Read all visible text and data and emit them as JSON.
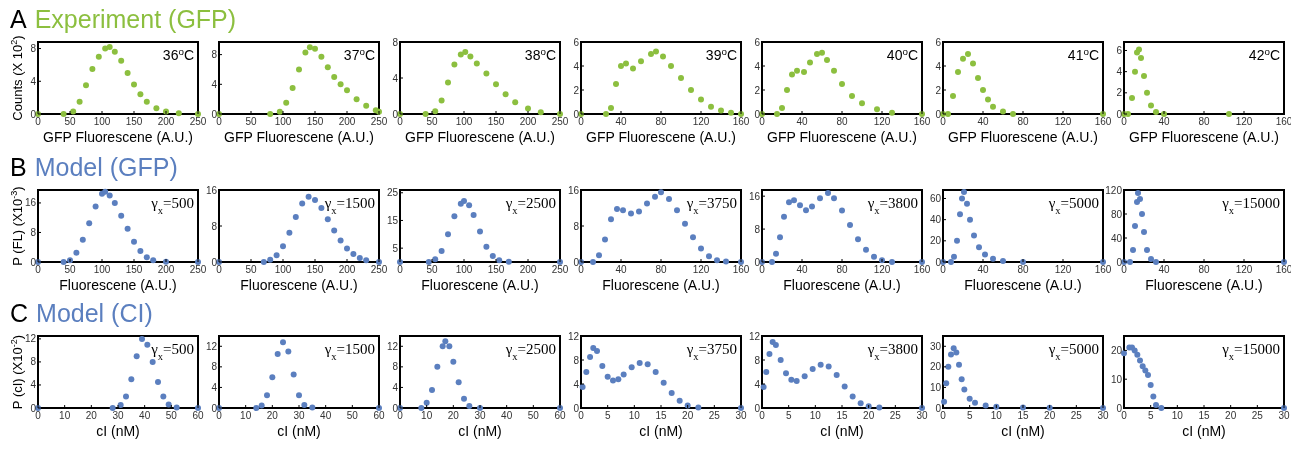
{
  "chart_data": [
    {
      "type": "scatter",
      "title": "A Experiment (GFP)",
      "ylabel": "Counts (X 10$^{2}$)",
      "xlabel": "GFP Fluorescene (A.U.)",
      "annotations": [
        "36$^{o}$C"
      ],
      "color": "#8cbf3f",
      "marker": "circle",
      "xlim": [
        0,
        250
      ],
      "xticks": [
        0,
        50,
        100,
        150,
        200,
        250
      ],
      "ylim": [
        0,
        8.8
      ],
      "yticks": [
        0,
        4,
        8
      ],
      "x": [
        0,
        40,
        55,
        65,
        75,
        85,
        95,
        105,
        112,
        120,
        130,
        140,
        150,
        160,
        170,
        185,
        200,
        220,
        250
      ],
      "values": [
        0,
        0,
        0.3,
        1.5,
        3.5,
        5.5,
        7,
        8,
        8.2,
        7.6,
        6.5,
        5,
        3.6,
        2.4,
        1.5,
        0.7,
        0.3,
        0.1,
        0
      ]
    },
    {
      "type": "scatter",
      "xlabel": "GFP Fluorescene (A.U.)",
      "annotations": [
        "37$^{o}$C"
      ],
      "color": "#8cbf3f",
      "marker": "circle",
      "xlim": [
        0,
        250
      ],
      "xticks": [
        0,
        50,
        100,
        150,
        200,
        250
      ],
      "ylim": [
        0,
        9.7
      ],
      "yticks": [
        0,
        4,
        8
      ],
      "x": [
        0,
        80,
        95,
        105,
        115,
        125,
        135,
        142,
        150,
        160,
        170,
        180,
        190,
        200,
        215,
        230,
        245,
        250
      ],
      "values": [
        0,
        0,
        0.3,
        1.5,
        3.5,
        6,
        8.3,
        9,
        8.8,
        7.7,
        6.3,
        5,
        4,
        3.2,
        2,
        1.1,
        0.5,
        0.3
      ]
    },
    {
      "type": "scatter",
      "xlabel": "GFP Fluorescene (A.U.)",
      "annotations": [
        "38$^{o}$C"
      ],
      "color": "#8cbf3f",
      "marker": "circle",
      "xlim": [
        0,
        250
      ],
      "xticks": [
        0,
        50,
        100,
        150,
        200,
        250
      ],
      "ylim": [
        0,
        8
      ],
      "yticks": [
        0,
        4,
        8
      ],
      "x": [
        0,
        40,
        55,
        65,
        75,
        85,
        95,
        102,
        110,
        120,
        135,
        150,
        165,
        180,
        200,
        220,
        250
      ],
      "values": [
        0,
        0,
        0.3,
        1.5,
        3.5,
        5.5,
        6.6,
        6.9,
        6.4,
        5.6,
        4.5,
        3.3,
        2.2,
        1.3,
        0.6,
        0.2,
        0
      ]
    },
    {
      "type": "scatter",
      "xlabel": "GFP Fluorescene (A.U.)",
      "annotations": [
        "39$^{o}$C"
      ],
      "color": "#8cbf3f",
      "marker": "circle",
      "xlim": [
        0,
        160
      ],
      "xticks": [
        0,
        40,
        80,
        120,
        160
      ],
      "ylim": [
        0,
        6
      ],
      "yticks": [
        0,
        2,
        4,
        6
      ],
      "x": [
        0,
        25,
        30,
        35,
        40,
        45,
        52,
        60,
        70,
        75,
        82,
        90,
        100,
        110,
        120,
        130,
        140,
        150,
        160
      ],
      "values": [
        0,
        0,
        0.5,
        2.5,
        4,
        4.2,
        3.8,
        4.4,
        5,
        5.2,
        4.8,
        4,
        3,
        2,
        1.2,
        0.6,
        0.3,
        0.1,
        0
      ]
    },
    {
      "type": "scatter",
      "xlabel": "GFP Fluorescene (A.U.)",
      "annotations": [
        "40$^{o}$C"
      ],
      "color": "#8cbf3f",
      "marker": "circle",
      "xlim": [
        0,
        160
      ],
      "xticks": [
        0,
        40,
        80,
        120,
        160
      ],
      "ylim": [
        0,
        6
      ],
      "yticks": [
        0,
        2,
        4,
        6
      ],
      "x": [
        0,
        15,
        20,
        25,
        30,
        35,
        42,
        48,
        55,
        60,
        65,
        72,
        80,
        90,
        100,
        115,
        130,
        160
      ],
      "values": [
        0,
        0,
        0.5,
        2,
        3.3,
        3.6,
        3.5,
        4.3,
        5,
        5.1,
        4.5,
        3.6,
        2.5,
        1.5,
        0.9,
        0.4,
        0.1,
        0
      ]
    },
    {
      "type": "scatter",
      "xlabel": "GFP Fluorescene (A.U.)",
      "annotations": [
        "41$^{o}$C"
      ],
      "color": "#8cbf3f",
      "marker": "circle",
      "xlim": [
        0,
        160
      ],
      "xticks": [
        0,
        40,
        80,
        120,
        160
      ],
      "ylim": [
        0,
        6
      ],
      "yticks": [
        0,
        2,
        4,
        6
      ],
      "x": [
        0,
        5,
        10,
        15,
        20,
        25,
        30,
        35,
        40,
        45,
        50,
        60,
        70,
        160
      ],
      "values": [
        0,
        0,
        1.5,
        3.5,
        4.6,
        5,
        4.2,
        3,
        2,
        1.2,
        0.6,
        0.2,
        0,
        0
      ]
    },
    {
      "type": "scatter",
      "xlabel": "GFP Fluorescene (A.U.)",
      "annotations": [
        "42$^{o}$C"
      ],
      "color": "#8cbf3f",
      "marker": "circle",
      "xlim": [
        0,
        160
      ],
      "xticks": [
        0,
        40,
        80,
        120,
        160
      ],
      "ylim": [
        0,
        6.8
      ],
      "yticks": [
        0,
        2,
        4,
        6
      ],
      "x": [
        0,
        4,
        8,
        11,
        13,
        15,
        17,
        20,
        23,
        27,
        32,
        40,
        105
      ],
      "values": [
        0,
        0,
        1.5,
        4,
        5.8,
        6.1,
        5.3,
        3.6,
        2,
        0.8,
        0.2,
        0,
        0
      ]
    },
    {
      "type": "scatter",
      "title": "B Model (GFP)",
      "ylabel": "P (FL)  (X10$^{-3}$)",
      "xlabel": "Fluorescene (A.U.)",
      "annotations": [
        "γ$_{x}$=500"
      ],
      "color": "#5b7fbf",
      "marker": "circle",
      "xlim": [
        0,
        250
      ],
      "xticks": [
        0,
        50,
        100,
        150,
        200,
        250
      ],
      "ylim": [
        0,
        19.5
      ],
      "yticks": [
        0,
        8,
        16
      ],
      "x": [
        0,
        40,
        50,
        60,
        70,
        80,
        90,
        100,
        105,
        112,
        120,
        130,
        140,
        150,
        160,
        170,
        180,
        200,
        250
      ],
      "values": [
        0,
        0,
        0.5,
        2.5,
        6,
        10.5,
        15,
        18.5,
        19,
        18,
        16,
        12.5,
        9,
        5.5,
        3,
        1.3,
        0.5,
        0.1,
        0
      ]
    },
    {
      "type": "scatter",
      "xlabel": "Fluorescene (A.U.)",
      "annotations": [
        "γ$_{x}$=1500"
      ],
      "color": "#5b7fbf",
      "marker": "circle",
      "xlim": [
        0,
        250
      ],
      "xticks": [
        0,
        50,
        100,
        150,
        200,
        250
      ],
      "ylim": [
        0,
        16
      ],
      "yticks": [
        0,
        8,
        16
      ],
      "x": [
        0,
        70,
        80,
        90,
        100,
        110,
        120,
        130,
        140,
        150,
        160,
        170,
        180,
        190,
        200,
        210,
        220,
        230,
        250
      ],
      "values": [
        0,
        0,
        0.5,
        1.5,
        3.5,
        6.5,
        10,
        13,
        14.5,
        13.8,
        12,
        9.5,
        7,
        4.8,
        3,
        1.8,
        0.9,
        0.4,
        0
      ]
    },
    {
      "type": "scatter",
      "xlabel": "Fluorescene (A.U.)",
      "annotations": [
        "γ$_{x}$=2500"
      ],
      "color": "#5b7fbf",
      "marker": "circle",
      "xlim": [
        0,
        250
      ],
      "xticks": [
        0,
        50,
        100,
        150,
        200,
        250
      ],
      "ylim": [
        0,
        26
      ],
      "yticks": [
        5,
        15,
        25
      ],
      "x": [
        0,
        45,
        55,
        65,
        75,
        85,
        95,
        100,
        108,
        115,
        125,
        135,
        145,
        155,
        170,
        250
      ],
      "values": [
        0,
        0,
        1,
        4,
        10,
        16.5,
        21,
        22,
        20.5,
        17,
        11,
        5.5,
        2.2,
        0.6,
        0.1,
        0
      ]
    },
    {
      "type": "scatter",
      "xlabel": "Fluorescene (A.U.)",
      "annotations": [
        "γ$_{x}$=3750"
      ],
      "color": "#5b7fbf",
      "marker": "circle",
      "xlim": [
        0,
        160
      ],
      "xticks": [
        0,
        40,
        80,
        120,
        160
      ],
      "ylim": [
        0,
        16
      ],
      "yticks": [
        0,
        8,
        16
      ],
      "x": [
        0,
        12,
        18,
        24,
        30,
        36,
        42,
        50,
        58,
        66,
        74,
        80,
        88,
        96,
        104,
        112,
        120,
        128,
        136,
        145,
        160
      ],
      "values": [
        0,
        0,
        1.5,
        5,
        9.5,
        11.8,
        11.5,
        10.8,
        11.2,
        13,
        14.5,
        15.5,
        14,
        11.5,
        8.5,
        5.5,
        3,
        1.3,
        0.4,
        0.1,
        0
      ]
    },
    {
      "type": "scatter",
      "xlabel": "Fluorescene (A.U.)",
      "annotations": [
        "γ$_{x}$=3800"
      ],
      "color": "#5b7fbf",
      "marker": "circle",
      "xlim": [
        0,
        160
      ],
      "xticks": [
        0,
        40,
        80,
        120,
        160
      ],
      "ylim": [
        0,
        17.5
      ],
      "yticks": [
        0,
        8,
        16
      ],
      "x": [
        0,
        10,
        14,
        18,
        22,
        27,
        32,
        38,
        44,
        50,
        58,
        66,
        72,
        80,
        88,
        96,
        104,
        112,
        120,
        130,
        160
      ],
      "values": [
        0,
        0,
        2,
        6,
        11,
        14.5,
        15,
        13.8,
        12.6,
        13.5,
        15.5,
        16.8,
        15.5,
        12.5,
        9,
        5.5,
        3,
        1.3,
        0.4,
        0,
        0
      ]
    },
    {
      "type": "scatter",
      "xlabel": "Fluorescene (A.U.)",
      "annotations": [
        "γ$_{x}$=5000"
      ],
      "color": "#5b7fbf",
      "marker": "circle",
      "xlim": [
        0,
        160
      ],
      "xticks": [
        0,
        40,
        80,
        120,
        160
      ],
      "ylim": [
        0,
        68
      ],
      "yticks": [
        0,
        20,
        40,
        60
      ],
      "x": [
        0,
        8,
        11,
        14,
        17,
        19,
        21,
        24,
        27,
        31,
        36,
        42,
        50,
        60,
        80,
        160
      ],
      "values": [
        0,
        0,
        5,
        20,
        45,
        60,
        66,
        55,
        40,
        25,
        14,
        7,
        3,
        1,
        0,
        0
      ]
    },
    {
      "type": "scatter",
      "xlabel": "Fluorescene (A.U.)",
      "annotations": [
        "γ$_{x}$=15000"
      ],
      "color": "#5b7fbf",
      "marker": "circle",
      "xlim": [
        0,
        160
      ],
      "xticks": [
        0,
        40,
        80,
        120,
        160
      ],
      "ylim": [
        0,
        120
      ],
      "yticks": [
        0,
        40,
        80,
        120
      ],
      "x": [
        0,
        6,
        9,
        11,
        13,
        14,
        16,
        18,
        20,
        23,
        27,
        32,
        160
      ],
      "values": [
        0,
        0,
        20,
        60,
        100,
        115,
        105,
        80,
        50,
        20,
        5,
        0,
        0
      ]
    },
    {
      "type": "scatter",
      "title": "C Model (CI)",
      "ylabel": "P (cI) (X10$^{-2}$)",
      "xlabel": "cI (nM)",
      "annotations": [
        "γ$_{x}$=500"
      ],
      "color": "#5b7fbf",
      "marker": "circle",
      "xlim": [
        0,
        60
      ],
      "xticks": [
        0,
        10,
        20,
        30,
        40,
        50,
        60
      ],
      "ylim": [
        0,
        12.5
      ],
      "yticks": [
        0,
        4,
        8,
        12
      ],
      "x": [
        0,
        28,
        31,
        33,
        35,
        37,
        39,
        41,
        43,
        45,
        47,
        49,
        52,
        60
      ],
      "values": [
        0,
        0,
        0.5,
        2,
        5,
        9,
        12,
        11,
        8,
        4.5,
        2,
        0.6,
        0.1,
        0
      ]
    },
    {
      "type": "scatter",
      "xlabel": "cI (nM)",
      "annotations": [
        "γ$_{x}$=1500"
      ],
      "color": "#5b7fbf",
      "marker": "circle",
      "xlim": [
        0,
        60
      ],
      "xticks": [
        0,
        10,
        20,
        30,
        40,
        50,
        60
      ],
      "ylim": [
        0,
        14
      ],
      "yticks": [
        0,
        4,
        8,
        12
      ],
      "x": [
        0,
        14,
        16,
        18,
        20,
        22,
        24,
        26,
        28,
        30,
        32,
        35,
        60
      ],
      "values": [
        0,
        0,
        0.5,
        2.5,
        6,
        10.5,
        12.8,
        11,
        6.5,
        2.5,
        0.6,
        0.1,
        0
      ]
    },
    {
      "type": "scatter",
      "xlabel": "cI (nM)",
      "annotations": [
        "γ$_{x}$=2500"
      ],
      "color": "#5b7fbf",
      "marker": "circle",
      "xlim": [
        0,
        60
      ],
      "xticks": [
        0,
        10,
        20,
        30,
        40,
        50,
        60
      ],
      "ylim": [
        0,
        14
      ],
      "yticks": [
        0,
        4,
        8,
        12
      ],
      "x": [
        0,
        8,
        10,
        12,
        14,
        16,
        17,
        18.5,
        20,
        22,
        24,
        26,
        30,
        60
      ],
      "values": [
        0,
        0,
        1,
        3.5,
        8,
        12,
        13,
        12,
        9,
        5,
        1.8,
        0.4,
        0,
        0
      ]
    },
    {
      "type": "scatter",
      "xlabel": "cI (nM)",
      "annotations": [
        "γ$_{x}$=3750"
      ],
      "color": "#5b7fbf",
      "marker": "circle",
      "xlim": [
        0,
        30
      ],
      "xticks": [
        0,
        5,
        10,
        15,
        20,
        25,
        30
      ],
      "ylim": [
        0,
        12
      ],
      "yticks": [
        0,
        4,
        8,
        12
      ],
      "x": [
        0.3,
        1,
        1.7,
        2.3,
        3,
        4,
        5,
        6,
        7,
        8,
        9.5,
        11,
        12.5,
        14,
        15.5,
        17,
        18.5,
        20,
        22,
        30
      ],
      "values": [
        3.5,
        6,
        8.5,
        10,
        9.5,
        7,
        5.2,
        4.6,
        4.8,
        5.6,
        6.8,
        7.5,
        7.3,
        6,
        4.2,
        2.5,
        1.2,
        0.4,
        0.1,
        0
      ]
    },
    {
      "type": "scatter",
      "xlabel": "cI (nM)",
      "annotations": [
        "γ$_{x}$=3800"
      ],
      "color": "#5b7fbf",
      "marker": "circle",
      "xlim": [
        0,
        30
      ],
      "xticks": [
        0,
        5,
        10,
        15,
        20,
        25,
        30
      ],
      "ylim": [
        0,
        12
      ],
      "yticks": [
        0,
        4,
        8,
        12
      ],
      "x": [
        0.3,
        0.8,
        1.4,
        2,
        2.6,
        3.5,
        4.5,
        5.5,
        6.5,
        8,
        9.5,
        11,
        12.5,
        14,
        15.5,
        17,
        18.5,
        20,
        22,
        30
      ],
      "values": [
        3.5,
        6,
        9,
        11,
        10.5,
        8,
        5.8,
        4.7,
        4.5,
        5.3,
        6.5,
        7.2,
        6.9,
        5.5,
        3.6,
        1.9,
        0.8,
        0.3,
        0.1,
        0
      ]
    },
    {
      "type": "scatter",
      "xlabel": "cI (nM)",
      "annotations": [
        "γ$_{x}$=5000"
      ],
      "color": "#5b7fbf",
      "marker": "circle",
      "xlim": [
        0,
        30
      ],
      "xticks": [
        0,
        5,
        10,
        15,
        20,
        25,
        30
      ],
      "ylim": [
        0,
        35
      ],
      "yticks": [
        0,
        10,
        20,
        30
      ],
      "x": [
        0.2,
        0.6,
        1,
        1.5,
        2,
        2.5,
        3,
        3.5,
        4,
        5,
        6,
        8,
        10,
        15,
        20,
        30
      ],
      "values": [
        3,
        12,
        20,
        26,
        29,
        27,
        21,
        14,
        9,
        4.5,
        2.5,
        1.2,
        0.6,
        0.2,
        0.1,
        0
      ]
    },
    {
      "type": "scatter",
      "xlabel": "cI (nM)",
      "annotations": [
        "γ$_{x}$=15000"
      ],
      "color": "#5b7fbf",
      "marker": "circle",
      "xlim": [
        0,
        30
      ],
      "xticks": [
        0,
        5,
        10,
        15,
        20,
        25,
        30
      ],
      "ylim": [
        0,
        25
      ],
      "yticks": [
        0,
        10,
        20
      ],
      "x": [
        0,
        1,
        1.5,
        2,
        2.5,
        3,
        3.5,
        4,
        4.5,
        5,
        5.5,
        6,
        7,
        30
      ],
      "values": [
        19,
        21,
        21,
        20,
        18.5,
        16.5,
        14.5,
        13,
        11.5,
        8,
        4,
        1,
        0,
        0
      ]
    }
  ]
}
